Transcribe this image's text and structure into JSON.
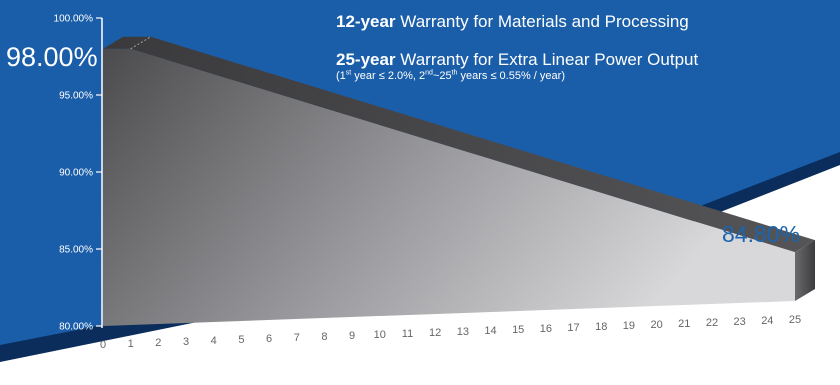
{
  "colors": {
    "background_blue": "#1a5ea9",
    "dark_navy_band": "#0b2d5c",
    "accent_value_blue": "#1b64b0",
    "block_front_light": "#d6d6d8",
    "block_front_dark": "#4a4a4a"
  },
  "headline": {
    "line1_bold": "12-year",
    "line1_text": " Warranty for Materials and Processing",
    "line2_bold": "25-year",
    "line2_text": " Warranty for Extra Linear Power Output",
    "line3": {
      "p1": "(1",
      "sup1": "st",
      "p2": " year ≤ 2.0%, 2",
      "sup2": "nd",
      "p3": "~25",
      "sup3": "th",
      "p4": " years ≤ 0.55% / year)"
    }
  },
  "chart_data": {
    "type": "area",
    "x": [
      0,
      1,
      2,
      3,
      4,
      5,
      6,
      7,
      8,
      9,
      10,
      11,
      12,
      13,
      14,
      15,
      16,
      17,
      18,
      19,
      20,
      21,
      22,
      23,
      24,
      25
    ],
    "values": [
      98.0,
      98.0,
      97.45,
      96.9,
      96.35,
      95.8,
      95.25,
      94.7,
      94.15,
      93.6,
      93.05,
      92.5,
      91.95,
      91.4,
      90.85,
      90.3,
      89.75,
      89.2,
      88.65,
      88.1,
      87.55,
      87.0,
      86.45,
      85.9,
      85.35,
      84.8
    ],
    "ylim": [
      80,
      100
    ],
    "ytick_labels": [
      "100.00%",
      "95.00%",
      "90.00%",
      "85.00%",
      "80.00%"
    ],
    "xtick_labels": [
      "0",
      "1",
      "2",
      "3",
      "4",
      "5",
      "6",
      "7",
      "8",
      "9",
      "10",
      "11",
      "12",
      "13",
      "14",
      "15",
      "16",
      "17",
      "18",
      "19",
      "20",
      "21",
      "22",
      "23",
      "24",
      "25"
    ],
    "start_label": "98.00%",
    "end_label": "84.80%"
  }
}
